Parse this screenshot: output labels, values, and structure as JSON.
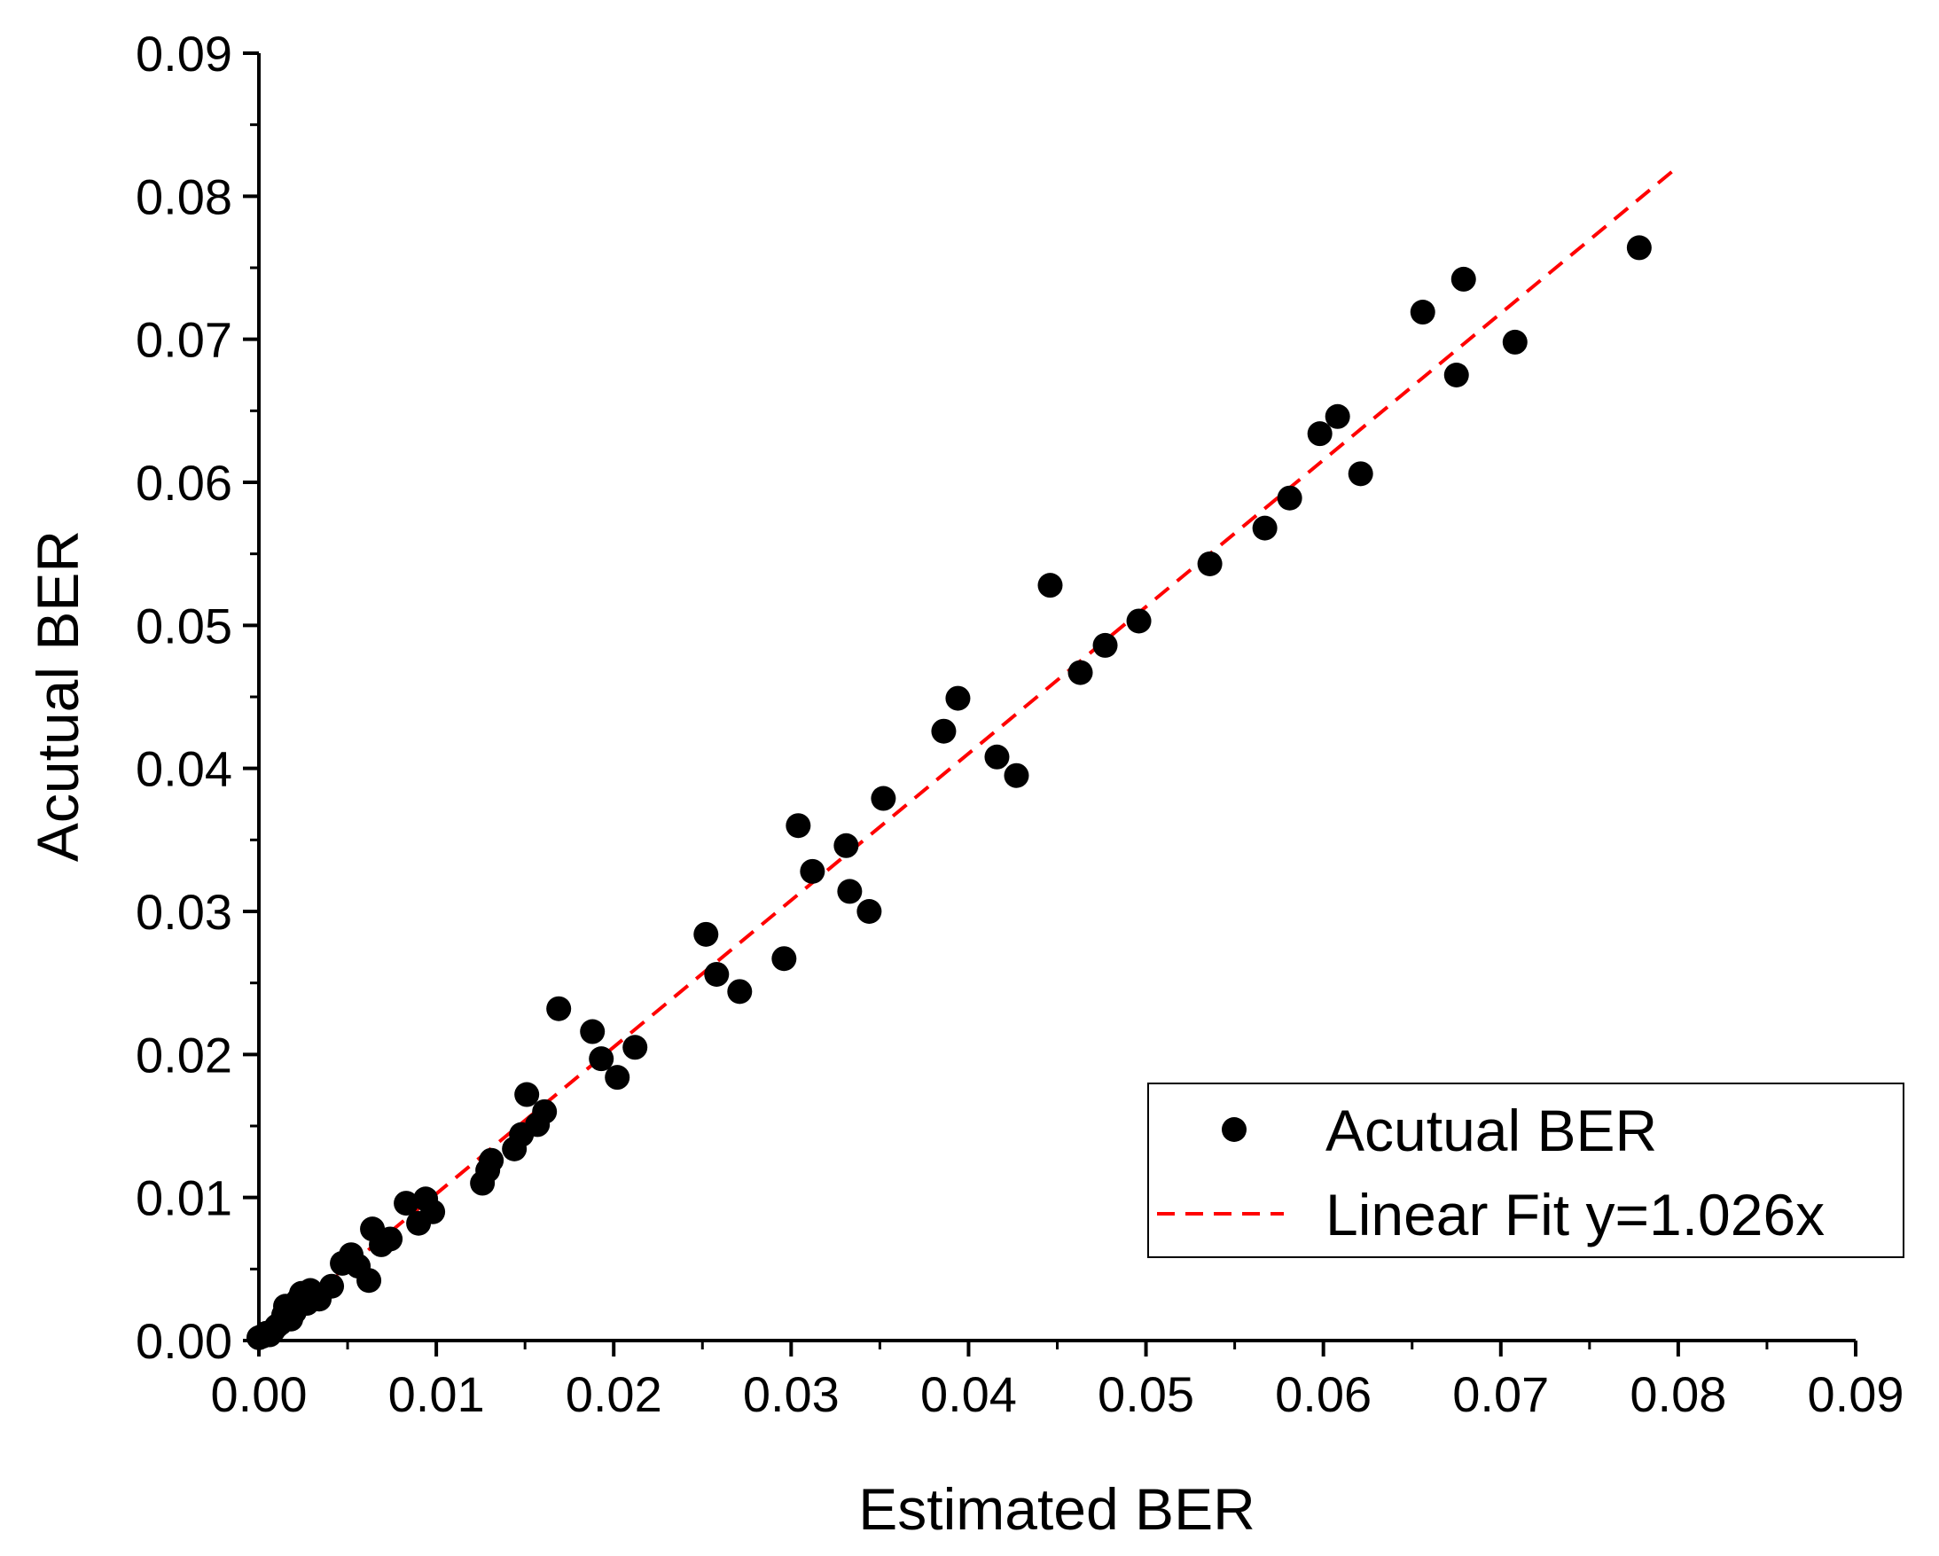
{
  "chart_data": {
    "type": "scatter",
    "title": "",
    "xlabel": "Estimated BER",
    "ylabel": "Acutual BER",
    "xlim": [
      0,
      0.09
    ],
    "ylim": [
      0,
      0.09
    ],
    "xticks": [
      "0.00",
      "0.01",
      "0.02",
      "0.03",
      "0.04",
      "0.05",
      "0.06",
      "0.07",
      "0.08",
      "0.09"
    ],
    "yticks": [
      "0.00",
      "0.01",
      "0.02",
      "0.03",
      "0.04",
      "0.05",
      "0.06",
      "0.07",
      "0.08",
      "0.09"
    ],
    "legend_position": "bottom-right",
    "grid": false,
    "series": [
      {
        "name": "Acutual BER",
        "kind": "scatter",
        "color": "#000000",
        "points": [
          [
            0.0,
            0.0002
          ],
          [
            0.0002,
            0.0003
          ],
          [
            0.0004,
            0.0005
          ],
          [
            0.0006,
            0.0004
          ],
          [
            0.0008,
            0.0007
          ],
          [
            0.001,
            0.001
          ],
          [
            0.0012,
            0.0012
          ],
          [
            0.0014,
            0.0018
          ],
          [
            0.0015,
            0.0024
          ],
          [
            0.0018,
            0.0015
          ],
          [
            0.002,
            0.002
          ],
          [
            0.0022,
            0.0028
          ],
          [
            0.0024,
            0.0033
          ],
          [
            0.0027,
            0.0026
          ],
          [
            0.0029,
            0.0035
          ],
          [
            0.0034,
            0.0029
          ],
          [
            0.0041,
            0.0038
          ],
          [
            0.0047,
            0.0054
          ],
          [
            0.0052,
            0.006
          ],
          [
            0.0056,
            0.0052
          ],
          [
            0.0062,
            0.0042
          ],
          [
            0.0064,
            0.0078
          ],
          [
            0.0069,
            0.0067
          ],
          [
            0.0074,
            0.0071
          ],
          [
            0.0083,
            0.0096
          ],
          [
            0.009,
            0.0082
          ],
          [
            0.0094,
            0.0099
          ],
          [
            0.0098,
            0.009
          ],
          [
            0.0126,
            0.011
          ],
          [
            0.0129,
            0.0119
          ],
          [
            0.0131,
            0.0126
          ],
          [
            0.0144,
            0.0134
          ],
          [
            0.0148,
            0.0144
          ],
          [
            0.0151,
            0.0172
          ],
          [
            0.0157,
            0.0151
          ],
          [
            0.0161,
            0.016
          ],
          [
            0.0169,
            0.0232
          ],
          [
            0.0188,
            0.0216
          ],
          [
            0.0193,
            0.0197
          ],
          [
            0.0202,
            0.0184
          ],
          [
            0.0212,
            0.0205
          ],
          [
            0.0252,
            0.0284
          ],
          [
            0.0258,
            0.0256
          ],
          [
            0.0271,
            0.0244
          ],
          [
            0.0296,
            0.0267
          ],
          [
            0.0304,
            0.036
          ],
          [
            0.0312,
            0.0328
          ],
          [
            0.0331,
            0.0346
          ],
          [
            0.0333,
            0.0314
          ],
          [
            0.0344,
            0.03
          ],
          [
            0.0352,
            0.0379
          ],
          [
            0.0386,
            0.0426
          ],
          [
            0.0394,
            0.0449
          ],
          [
            0.0416,
            0.0408
          ],
          [
            0.0427,
            0.0395
          ],
          [
            0.0446,
            0.0528
          ],
          [
            0.0463,
            0.0467
          ],
          [
            0.0477,
            0.0486
          ],
          [
            0.0496,
            0.0503
          ],
          [
            0.0536,
            0.0543
          ],
          [
            0.0567,
            0.0568
          ],
          [
            0.0581,
            0.0589
          ],
          [
            0.0598,
            0.0634
          ],
          [
            0.0608,
            0.0646
          ],
          [
            0.0621,
            0.0606
          ],
          [
            0.0656,
            0.0719
          ],
          [
            0.0675,
            0.0675
          ],
          [
            0.0679,
            0.0742
          ],
          [
            0.0708,
            0.0698
          ],
          [
            0.0778,
            0.0764
          ]
        ]
      },
      {
        "name": "Linear Fit y=1.026x",
        "kind": "line",
        "color": "#ff0000",
        "slope": 1.026,
        "x_range": [
          0,
          0.08
        ]
      }
    ]
  }
}
